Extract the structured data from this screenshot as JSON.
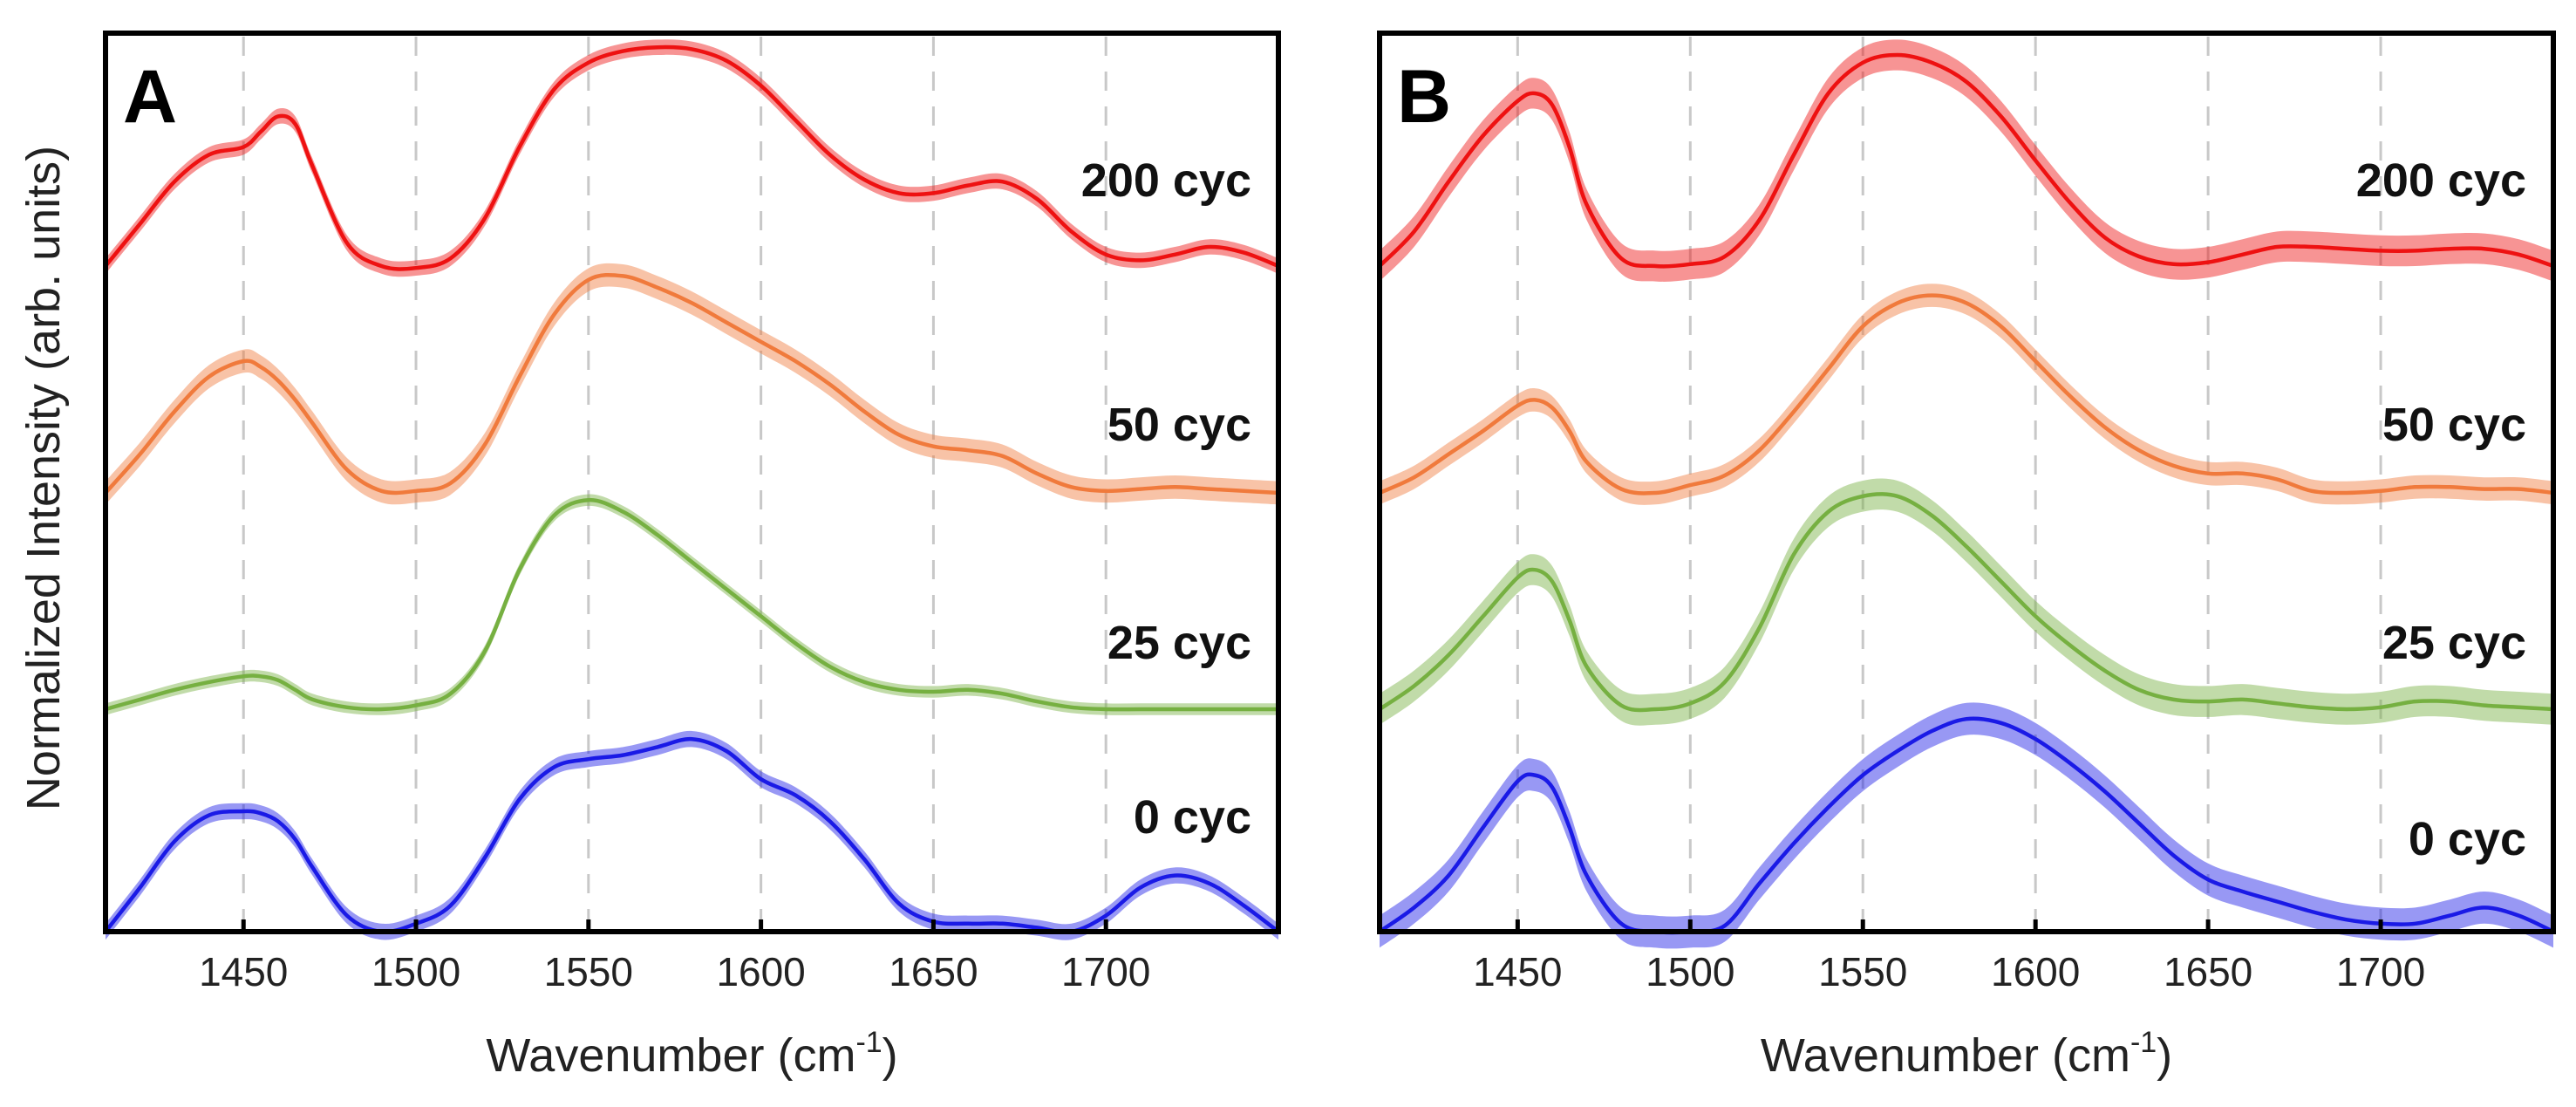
{
  "figure": {
    "y_axis_label": "Normalized Intensity (arb. units)"
  },
  "chart_data": [
    {
      "panel": "A",
      "type": "line",
      "xlabel": "Wavenumber (cm",
      "xlabel_superscript": "-1",
      "xlabel_suffix": ")",
      "ylabel": "Normalized Intensity (arb. units)",
      "xlim": [
        1410,
        1750
      ],
      "xticks": [
        1450,
        1500,
        1550,
        1600,
        1650,
        1700
      ],
      "grid": "vertical dashed",
      "x": [
        1410,
        1420,
        1430,
        1440,
        1450,
        1455,
        1460,
        1465,
        1470,
        1480,
        1490,
        1500,
        1510,
        1520,
        1530,
        1540,
        1550,
        1560,
        1570,
        1580,
        1590,
        1600,
        1610,
        1620,
        1630,
        1640,
        1650,
        1660,
        1670,
        1680,
        1690,
        1700,
        1710,
        1720,
        1730,
        1740,
        1750
      ],
      "series": [
        {
          "name": "200 cyc",
          "color": "#ee1111",
          "label": "200 cyc",
          "offset": 3.0,
          "band": 0.04,
          "values": [
            0.0,
            0.22,
            0.44,
            0.58,
            0.62,
            0.7,
            0.78,
            0.74,
            0.52,
            0.12,
            0.0,
            -0.01,
            0.04,
            0.25,
            0.62,
            0.92,
            1.06,
            1.12,
            1.14,
            1.13,
            1.07,
            0.94,
            0.76,
            0.58,
            0.45,
            0.38,
            0.38,
            0.42,
            0.44,
            0.35,
            0.18,
            0.06,
            0.03,
            0.06,
            0.1,
            0.07,
            0.0
          ]
        },
        {
          "name": "50 cyc",
          "color": "#f07a3c",
          "label": "50 cyc",
          "offset": 1.85,
          "band": 0.06,
          "values": [
            0.0,
            0.2,
            0.42,
            0.6,
            0.68,
            0.65,
            0.58,
            0.48,
            0.36,
            0.12,
            0.01,
            0.01,
            0.05,
            0.25,
            0.6,
            0.92,
            1.1,
            1.12,
            1.06,
            0.98,
            0.88,
            0.78,
            0.68,
            0.56,
            0.42,
            0.3,
            0.24,
            0.22,
            0.19,
            0.1,
            0.03,
            0.01,
            0.02,
            0.03,
            0.02,
            0.01,
            0.0
          ]
        },
        {
          "name": "25 cyc",
          "color": "#76b041",
          "label": "25 cyc",
          "offset": 0.95,
          "band": 0.03,
          "values": [
            0.0,
            0.05,
            0.1,
            0.14,
            0.17,
            0.17,
            0.15,
            0.1,
            0.05,
            0.01,
            0.0,
            0.02,
            0.08,
            0.3,
            0.72,
            1.0,
            1.08,
            1.02,
            0.9,
            0.76,
            0.62,
            0.48,
            0.34,
            0.22,
            0.14,
            0.1,
            0.09,
            0.1,
            0.08,
            0.04,
            0.01,
            0.0,
            0.0,
            0.0,
            0.0,
            0.0,
            0.0
          ]
        },
        {
          "name": "0 cyc",
          "color": "#1a1ae6",
          "label": "0 cyc",
          "offset": 0.0,
          "band": 0.04,
          "values": [
            0.0,
            0.22,
            0.45,
            0.58,
            0.6,
            0.59,
            0.55,
            0.46,
            0.32,
            0.08,
            0.0,
            0.04,
            0.13,
            0.37,
            0.66,
            0.82,
            0.86,
            0.88,
            0.92,
            0.96,
            0.9,
            0.76,
            0.68,
            0.55,
            0.36,
            0.14,
            0.05,
            0.04,
            0.04,
            0.02,
            0.0,
            0.08,
            0.22,
            0.28,
            0.24,
            0.13,
            0.0
          ]
        }
      ]
    },
    {
      "panel": "B",
      "type": "line",
      "xlabel": "Wavenumber (cm",
      "xlabel_superscript": "-1",
      "xlabel_suffix": ")",
      "ylabel": "Normalized Intensity (arb. units)",
      "xlim": [
        1410,
        1750
      ],
      "xticks": [
        1450,
        1500,
        1550,
        1600,
        1650,
        1700
      ],
      "grid": "vertical dashed",
      "x": [
        1410,
        1420,
        1430,
        1440,
        1450,
        1455,
        1460,
        1465,
        1470,
        1480,
        1490,
        1500,
        1510,
        1520,
        1530,
        1540,
        1550,
        1560,
        1570,
        1580,
        1590,
        1600,
        1610,
        1620,
        1630,
        1640,
        1650,
        1660,
        1670,
        1680,
        1690,
        1700,
        1710,
        1720,
        1730,
        1740,
        1750
      ],
      "series": [
        {
          "name": "200 cyc",
          "color": "#ee1111",
          "label": "200 cyc",
          "offset": 2.7,
          "band": 0.08,
          "values": [
            0.0,
            0.18,
            0.44,
            0.68,
            0.86,
            0.9,
            0.84,
            0.62,
            0.32,
            0.04,
            0.0,
            0.01,
            0.05,
            0.24,
            0.58,
            0.9,
            1.06,
            1.1,
            1.06,
            0.96,
            0.78,
            0.55,
            0.33,
            0.15,
            0.05,
            0.01,
            0.02,
            0.06,
            0.1,
            0.1,
            0.09,
            0.08,
            0.08,
            0.09,
            0.09,
            0.06,
            0.0
          ]
        },
        {
          "name": "50 cyc",
          "color": "#f07a3c",
          "label": "50 cyc",
          "offset": 1.8,
          "band": 0.06,
          "values": [
            0.0,
            0.08,
            0.2,
            0.32,
            0.45,
            0.48,
            0.44,
            0.32,
            0.16,
            0.02,
            0.0,
            0.04,
            0.09,
            0.22,
            0.42,
            0.64,
            0.86,
            0.98,
            1.02,
            0.98,
            0.86,
            0.68,
            0.5,
            0.34,
            0.22,
            0.14,
            0.1,
            0.1,
            0.07,
            0.01,
            0.0,
            0.01,
            0.03,
            0.03,
            0.02,
            0.02,
            0.0
          ]
        },
        {
          "name": "25 cyc",
          "color": "#76b041",
          "label": "25 cyc",
          "offset": 0.95,
          "band": 0.08,
          "values": [
            0.0,
            0.12,
            0.28,
            0.48,
            0.68,
            0.72,
            0.66,
            0.46,
            0.22,
            0.02,
            0.0,
            0.03,
            0.14,
            0.42,
            0.8,
            1.02,
            1.1,
            1.1,
            1.0,
            0.84,
            0.66,
            0.48,
            0.33,
            0.2,
            0.1,
            0.05,
            0.04,
            0.05,
            0.03,
            0.01,
            0.0,
            0.01,
            0.04,
            0.04,
            0.02,
            0.01,
            0.0
          ]
        },
        {
          "name": "0 cyc",
          "color": "#1a1ae6",
          "label": "0 cyc",
          "offset": 0.0,
          "band": 0.08,
          "values": [
            0.0,
            0.12,
            0.28,
            0.52,
            0.75,
            0.78,
            0.72,
            0.52,
            0.28,
            0.04,
            0.0,
            0.0,
            0.03,
            0.24,
            0.44,
            0.62,
            0.78,
            0.9,
            1.0,
            1.06,
            1.04,
            0.96,
            0.84,
            0.7,
            0.54,
            0.38,
            0.26,
            0.2,
            0.15,
            0.1,
            0.06,
            0.04,
            0.04,
            0.08,
            0.12,
            0.08,
            0.0
          ]
        }
      ]
    }
  ]
}
